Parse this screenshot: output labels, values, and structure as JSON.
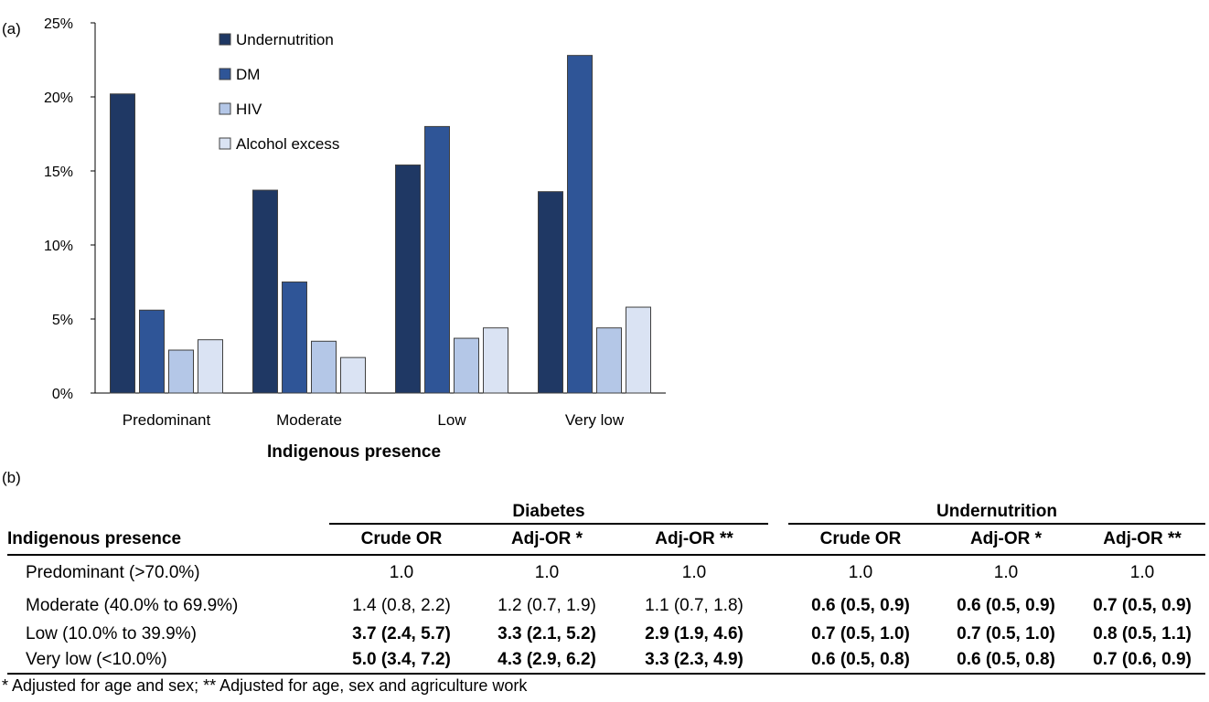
{
  "panel_a_label": "(a)",
  "panel_b_label": "(b)",
  "chart_data": {
    "type": "bar",
    "categories": [
      "Predominant",
      "Moderate",
      "Low",
      "Very low"
    ],
    "series": [
      {
        "name": "Undernutrition",
        "color": "#1f3864",
        "values": [
          20.2,
          13.7,
          15.4,
          13.6
        ]
      },
      {
        "name": "DM",
        "color": "#2f5597",
        "values": [
          5.6,
          7.5,
          18.0,
          22.8
        ]
      },
      {
        "name": "HIV",
        "color": "#b4c7e7",
        "values": [
          2.9,
          3.5,
          3.7,
          4.4
        ]
      },
      {
        "name": "Alcohol excess",
        "color": "#dae3f3",
        "values": [
          3.6,
          2.4,
          4.4,
          5.8
        ]
      }
    ],
    "xlabel": "Indigenous presence",
    "ylabel": "",
    "ylim": [
      0,
      25
    ],
    "yticks": [
      "0%",
      "5%",
      "10%",
      "15%",
      "20%",
      "25%"
    ],
    "legend_position": "top-left inside",
    "grid": false
  },
  "table": {
    "row_header": "Indigenous presence",
    "groups": [
      "Diabetes",
      "Undernutrition"
    ],
    "columns": [
      "Crude OR",
      "Adj-OR *",
      "Adj-OR **",
      "Crude OR",
      "Adj-OR *",
      "Adj-OR **"
    ],
    "rows": [
      {
        "label": "Predominant (>70.0%)",
        "cells": [
          {
            "text": "1.0",
            "bold": false
          },
          {
            "text": "1.0",
            "bold": false
          },
          {
            "text": "1.0",
            "bold": false
          },
          {
            "text": "1.0",
            "bold": false
          },
          {
            "text": "1.0",
            "bold": false
          },
          {
            "text": "1.0",
            "bold": false
          }
        ]
      },
      {
        "label": "Moderate (40.0% to 69.9%)",
        "cells": [
          {
            "text": "1.4 (0.8, 2.2)",
            "bold": false
          },
          {
            "text": "1.2 (0.7, 1.9)",
            "bold": false
          },
          {
            "text": "1.1 (0.7, 1.8)",
            "bold": false
          },
          {
            "text": "0.6 (0.5, 0.9)",
            "bold": true
          },
          {
            "text": "0.6 (0.5, 0.9)",
            "bold": true
          },
          {
            "text": "0.7 (0.5, 0.9)",
            "bold": true
          }
        ]
      },
      {
        "label": "Low (10.0% to 39.9%)",
        "cells": [
          {
            "text": "3.7 (2.4, 5.7)",
            "bold": true
          },
          {
            "text": "3.3 (2.1, 5.2)",
            "bold": true
          },
          {
            "text": "2.9 (1.9, 4.6)",
            "bold": true
          },
          {
            "text": "0.7 (0.5, 1.0)",
            "bold": true
          },
          {
            "text": "0.7 (0.5, 1.0)",
            "bold": true
          },
          {
            "text": "0.8 (0.5, 1.1)",
            "bold": true
          }
        ]
      },
      {
        "label": "Very low (<10.0%)",
        "cells": [
          {
            "text": "5.0 (3.4, 7.2)",
            "bold": true
          },
          {
            "text": "4.3 (2.9, 6.2)",
            "bold": true
          },
          {
            "text": "3.3 (2.3, 4.9)",
            "bold": true
          },
          {
            "text": "0.6 (0.5, 0.8)",
            "bold": true
          },
          {
            "text": "0.6 (0.5, 0.8)",
            "bold": true
          },
          {
            "text": "0.7 (0.6, 0.9)",
            "bold": true
          }
        ]
      }
    ],
    "footnote": "* Adjusted for age and sex; ** Adjusted for age, sex and agriculture work"
  }
}
